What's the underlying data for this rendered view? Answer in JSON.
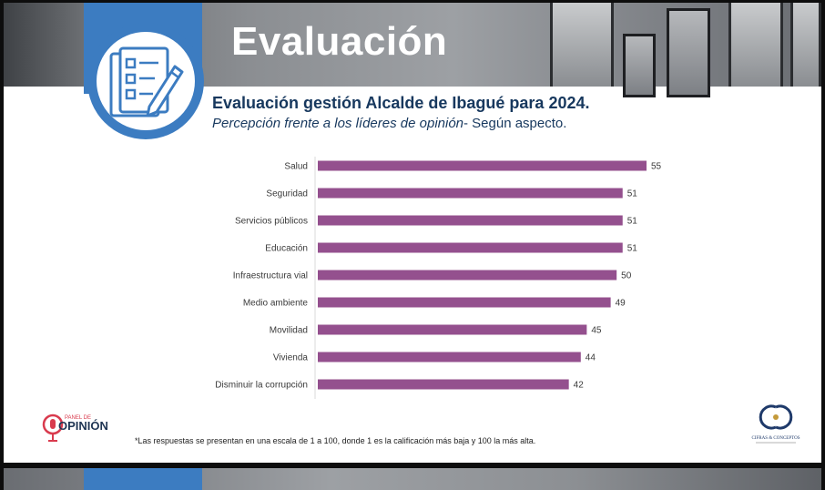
{
  "header": {
    "title": "Evaluación"
  },
  "heading": {
    "main": "Evaluación gestión Alcalde de Ibagué para 2024.",
    "subtitle_italic": "Percepción frente a los líderes de opinión",
    "subtitle_plain": "- Según aspecto."
  },
  "colors": {
    "bar": "#94508e",
    "accent_blue": "#3c7cc1",
    "heading_navy": "#17385e"
  },
  "chart_data": {
    "type": "bar",
    "orientation": "horizontal",
    "categories": [
      "Salud",
      "Seguridad",
      "Servicios públicos",
      "Educación",
      "Infraestructura vial",
      "Medio ambiente",
      "Movilidad",
      "Vivienda",
      "Disminuir la corrupción"
    ],
    "values": [
      55,
      51,
      51,
      51,
      50,
      49,
      45,
      44,
      42
    ],
    "value_labels": [
      "55",
      "51",
      "51",
      "51",
      "50",
      "49",
      "45",
      "44",
      "42"
    ],
    "xlim": [
      0,
      55
    ],
    "title": "",
    "xlabel": "",
    "ylabel": ""
  },
  "logos": {
    "left_small": "PANEL DE",
    "left_big": "OPINIÓN",
    "right_main": "CIFRAS & CONCEPTOS"
  },
  "footnote": "*Las respuestas se presentan en una escala de 1 a 100, donde 1 es la calificación más baja y 100 la más alta."
}
